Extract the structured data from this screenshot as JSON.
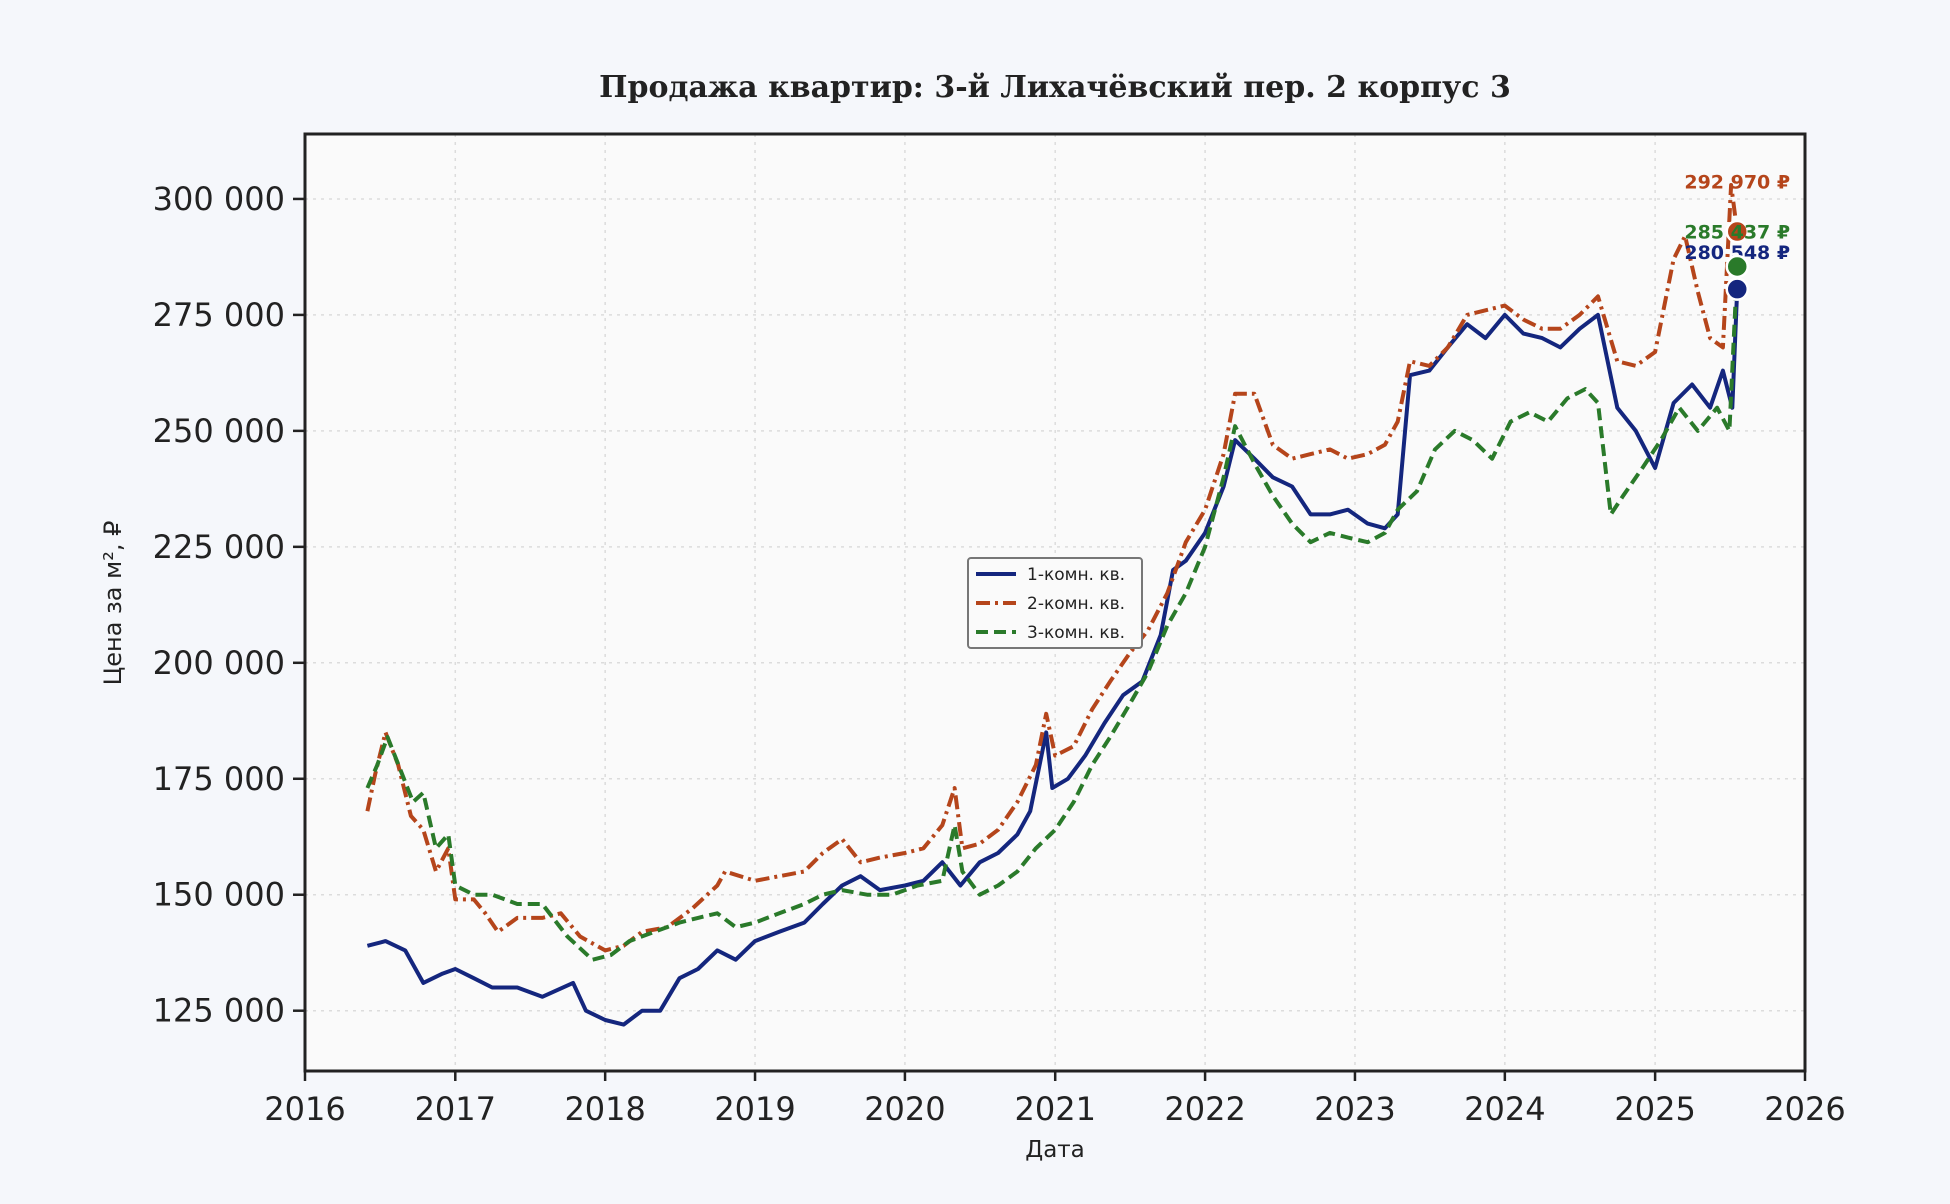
{
  "chart_data": {
    "type": "line",
    "title": "Продажа квартир: 3-й Лихачёвский пер. 2 корпус 3",
    "xlabel": "Дата",
    "ylabel": "Цена за м², ₽",
    "xlim": [
      "2016-01-01",
      "2026-01-01"
    ],
    "ylim": [
      112000,
      314000
    ],
    "x_ticks": [
      "2016",
      "2017",
      "2018",
      "2019",
      "2020",
      "2021",
      "2022",
      "2023",
      "2024",
      "2025",
      "2026"
    ],
    "y_ticks": [
      125000,
      150000,
      175000,
      200000,
      225000,
      250000,
      275000,
      300000
    ],
    "y_tick_labels": [
      "125 000",
      "150 000",
      "175 000",
      "200 000",
      "225 000",
      "250 000",
      "275 000",
      "300 000"
    ],
    "grid": true,
    "legend_position": "center",
    "series": [
      {
        "name": "1-комн. кв.",
        "color": "#14267e",
        "style": "solid",
        "final_value": 280548,
        "final_label": "280 548 ₽",
        "points": [
          [
            "2016-06-01",
            139000
          ],
          [
            "2016-07-15",
            140000
          ],
          [
            "2016-09-01",
            138000
          ],
          [
            "2016-10-15",
            131000
          ],
          [
            "2016-12-01",
            133000
          ],
          [
            "2017-01-01",
            134000
          ],
          [
            "2017-02-15",
            132000
          ],
          [
            "2017-04-01",
            130000
          ],
          [
            "2017-06-01",
            130000
          ],
          [
            "2017-08-01",
            128000
          ],
          [
            "2017-10-15",
            131000
          ],
          [
            "2017-11-15",
            125000
          ],
          [
            "2018-01-01",
            123000
          ],
          [
            "2018-02-15",
            122000
          ],
          [
            "2018-04-01",
            125000
          ],
          [
            "2018-05-15",
            125000
          ],
          [
            "2018-07-01",
            132000
          ],
          [
            "2018-08-15",
            134000
          ],
          [
            "2018-10-01",
            138000
          ],
          [
            "2018-11-15",
            136000
          ],
          [
            "2019-01-01",
            140000
          ],
          [
            "2019-03-01",
            142000
          ],
          [
            "2019-05-01",
            144000
          ],
          [
            "2019-06-15",
            148000
          ],
          [
            "2019-08-01",
            152000
          ],
          [
            "2019-09-15",
            154000
          ],
          [
            "2019-11-01",
            151000
          ],
          [
            "2020-01-01",
            152000
          ],
          [
            "2020-02-15",
            153000
          ],
          [
            "2020-04-01",
            157000
          ],
          [
            "2020-05-15",
            152000
          ],
          [
            "2020-07-01",
            157000
          ],
          [
            "2020-08-15",
            159000
          ],
          [
            "2020-10-01",
            163000
          ],
          [
            "2020-11-01",
            168000
          ],
          [
            "2020-12-10",
            185000
          ],
          [
            "2020-12-25",
            173000
          ],
          [
            "2021-02-01",
            175000
          ],
          [
            "2021-03-15",
            180000
          ],
          [
            "2021-05-01",
            187000
          ],
          [
            "2021-06-15",
            193000
          ],
          [
            "2021-08-01",
            196000
          ],
          [
            "2021-09-15",
            206000
          ],
          [
            "2021-10-15",
            220000
          ],
          [
            "2021-11-15",
            222000
          ],
          [
            "2022-01-01",
            228000
          ],
          [
            "2022-02-15",
            238000
          ],
          [
            "2022-03-15",
            248000
          ],
          [
            "2022-05-01",
            244000
          ],
          [
            "2022-06-15",
            240000
          ],
          [
            "2022-08-01",
            238000
          ],
          [
            "2022-09-15",
            232000
          ],
          [
            "2022-11-01",
            232000
          ],
          [
            "2022-12-15",
            233000
          ],
          [
            "2023-02-01",
            230000
          ],
          [
            "2023-03-15",
            229000
          ],
          [
            "2023-04-15",
            232000
          ],
          [
            "2023-05-15",
            262000
          ],
          [
            "2023-07-01",
            263000
          ],
          [
            "2023-08-15",
            268000
          ],
          [
            "2023-10-01",
            273000
          ],
          [
            "2023-11-15",
            270000
          ],
          [
            "2024-01-01",
            275000
          ],
          [
            "2024-02-15",
            271000
          ],
          [
            "2024-04-01",
            270000
          ],
          [
            "2024-05-15",
            268000
          ],
          [
            "2024-07-01",
            272000
          ],
          [
            "2024-08-15",
            275000
          ],
          [
            "2024-10-01",
            255000
          ],
          [
            "2024-11-15",
            250000
          ],
          [
            "2025-01-01",
            242000
          ],
          [
            "2025-02-15",
            256000
          ],
          [
            "2025-04-01",
            260000
          ],
          [
            "2025-05-15",
            255000
          ],
          [
            "2025-06-15",
            263000
          ],
          [
            "2025-07-08",
            255000
          ],
          [
            "2025-07-20",
            280548
          ]
        ]
      },
      {
        "name": "2-комн. кв.",
        "color": "#b5451b",
        "style": "dashdot",
        "final_value": 292970,
        "final_label": "292 970 ₽",
        "points": [
          [
            "2016-06-01",
            168000
          ],
          [
            "2016-06-20",
            176000
          ],
          [
            "2016-07-15",
            185000
          ],
          [
            "2016-08-15",
            178000
          ],
          [
            "2016-09-15",
            167000
          ],
          [
            "2016-10-15",
            164000
          ],
          [
            "2016-11-15",
            155000
          ],
          [
            "2016-12-15",
            160000
          ],
          [
            "2017-01-01",
            149000
          ],
          [
            "2017-02-15",
            149000
          ],
          [
            "2017-03-15",
            146000
          ],
          [
            "2017-04-15",
            142000
          ],
          [
            "2017-06-01",
            145000
          ],
          [
            "2017-08-01",
            145000
          ],
          [
            "2017-09-15",
            146000
          ],
          [
            "2017-11-01",
            141000
          ],
          [
            "2018-01-01",
            138000
          ],
          [
            "2018-02-15",
            139000
          ],
          [
            "2018-04-01",
            142000
          ],
          [
            "2018-06-01",
            143000
          ],
          [
            "2018-08-01",
            147000
          ],
          [
            "2018-10-01",
            152000
          ],
          [
            "2018-10-20",
            155000
          ],
          [
            "2019-01-01",
            153000
          ],
          [
            "2019-03-01",
            154000
          ],
          [
            "2019-05-01",
            155000
          ],
          [
            "2019-06-15",
            159000
          ],
          [
            "2019-08-01",
            162000
          ],
          [
            "2019-09-15",
            157000
          ],
          [
            "2019-11-01",
            158000
          ],
          [
            "2020-01-01",
            159000
          ],
          [
            "2020-02-15",
            160000
          ],
          [
            "2020-04-01",
            165000
          ],
          [
            "2020-05-01",
            173000
          ],
          [
            "2020-05-20",
            160000
          ],
          [
            "2020-07-01",
            161000
          ],
          [
            "2020-08-15",
            164000
          ],
          [
            "2020-10-01",
            170000
          ],
          [
            "2020-11-15",
            178000
          ],
          [
            "2020-12-10",
            189000
          ],
          [
            "2021-01-01",
            180000
          ],
          [
            "2021-02-15",
            182000
          ],
          [
            "2021-04-01",
            190000
          ],
          [
            "2021-05-15",
            196000
          ],
          [
            "2021-07-01",
            202000
          ],
          [
            "2021-08-15",
            207000
          ],
          [
            "2021-10-01",
            215000
          ],
          [
            "2021-11-15",
            226000
          ],
          [
            "2022-01-01",
            233000
          ],
          [
            "2022-02-15",
            245000
          ],
          [
            "2022-03-15",
            258000
          ],
          [
            "2022-05-01",
            258000
          ],
          [
            "2022-06-15",
            247000
          ],
          [
            "2022-08-01",
            244000
          ],
          [
            "2022-09-15",
            245000
          ],
          [
            "2022-11-01",
            246000
          ],
          [
            "2022-12-15",
            244000
          ],
          [
            "2023-02-01",
            245000
          ],
          [
            "2023-03-15",
            247000
          ],
          [
            "2023-04-15",
            252000
          ],
          [
            "2023-05-15",
            265000
          ],
          [
            "2023-07-01",
            264000
          ],
          [
            "2023-08-15",
            268000
          ],
          [
            "2023-10-01",
            275000
          ],
          [
            "2023-11-15",
            276000
          ],
          [
            "2024-01-01",
            277000
          ],
          [
            "2024-02-15",
            274000
          ],
          [
            "2024-04-01",
            272000
          ],
          [
            "2024-05-15",
            272000
          ],
          [
            "2024-07-01",
            275000
          ],
          [
            "2024-08-15",
            279000
          ],
          [
            "2024-10-01",
            265000
          ],
          [
            "2024-11-15",
            264000
          ],
          [
            "2025-01-01",
            267000
          ],
          [
            "2025-02-15",
            287000
          ],
          [
            "2025-03-15",
            292000
          ],
          [
            "2025-04-15",
            280000
          ],
          [
            "2025-05-15",
            270000
          ],
          [
            "2025-06-15",
            268000
          ],
          [
            "2025-07-05",
            303000
          ],
          [
            "2025-07-20",
            292970
          ]
        ]
      },
      {
        "name": "3-комн. кв.",
        "color": "#2a7a2a",
        "style": "dashed",
        "final_value": 285437,
        "final_label": "285 437 ₽",
        "points": [
          [
            "2016-06-01",
            173000
          ],
          [
            "2016-06-25",
            178000
          ],
          [
            "2016-07-20",
            184000
          ],
          [
            "2016-08-20",
            177000
          ],
          [
            "2016-09-20",
            170000
          ],
          [
            "2016-10-15",
            172000
          ],
          [
            "2016-11-15",
            160000
          ],
          [
            "2016-12-15",
            163000
          ],
          [
            "2017-01-01",
            152000
          ],
          [
            "2017-02-15",
            150000
          ],
          [
            "2017-04-01",
            150000
          ],
          [
            "2017-06-01",
            148000
          ],
          [
            "2017-08-01",
            148000
          ],
          [
            "2017-10-01",
            141000
          ],
          [
            "2017-12-01",
            136000
          ],
          [
            "2018-01-15",
            137000
          ],
          [
            "2018-03-01",
            140000
          ],
          [
            "2018-05-01",
            142000
          ],
          [
            "2018-07-01",
            144000
          ],
          [
            "2018-08-15",
            145000
          ],
          [
            "2018-10-01",
            146000
          ],
          [
            "2018-11-15",
            143000
          ],
          [
            "2019-01-01",
            144000
          ],
          [
            "2019-03-01",
            146000
          ],
          [
            "2019-05-01",
            148000
          ],
          [
            "2019-06-15",
            150000
          ],
          [
            "2019-08-01",
            151000
          ],
          [
            "2019-10-01",
            150000
          ],
          [
            "2019-12-01",
            150000
          ],
          [
            "2020-02-01",
            152000
          ],
          [
            "2020-04-01",
            153000
          ],
          [
            "2020-05-01",
            165000
          ],
          [
            "2020-05-20",
            155000
          ],
          [
            "2020-07-01",
            150000
          ],
          [
            "2020-08-15",
            152000
          ],
          [
            "2020-10-01",
            155000
          ],
          [
            "2020-11-15",
            160000
          ],
          [
            "2021-01-01",
            164000
          ],
          [
            "2021-02-15",
            170000
          ],
          [
            "2021-04-01",
            178000
          ],
          [
            "2021-05-15",
            184000
          ],
          [
            "2021-07-01",
            191000
          ],
          [
            "2021-08-15",
            198000
          ],
          [
            "2021-10-01",
            208000
          ],
          [
            "2021-11-15",
            215000
          ],
          [
            "2022-01-01",
            225000
          ],
          [
            "2022-02-15",
            240000
          ],
          [
            "2022-03-15",
            251000
          ],
          [
            "2022-05-01",
            243000
          ],
          [
            "2022-06-15",
            236000
          ],
          [
            "2022-08-01",
            230000
          ],
          [
            "2022-09-15",
            226000
          ],
          [
            "2022-11-01",
            228000
          ],
          [
            "2022-12-15",
            227000
          ],
          [
            "2023-02-01",
            226000
          ],
          [
            "2023-03-15",
            228000
          ],
          [
            "2023-04-15",
            233000
          ],
          [
            "2023-06-01",
            237000
          ],
          [
            "2023-07-15",
            246000
          ],
          [
            "2023-09-01",
            250000
          ],
          [
            "2023-10-15",
            248000
          ],
          [
            "2023-12-01",
            244000
          ],
          [
            "2024-01-15",
            252000
          ],
          [
            "2024-03-01",
            254000
          ],
          [
            "2024-04-15",
            252000
          ],
          [
            "2024-06-01",
            257000
          ],
          [
            "2024-07-15",
            259000
          ],
          [
            "2024-08-15",
            256000
          ],
          [
            "2024-09-15",
            232000
          ],
          [
            "2024-10-15",
            236000
          ],
          [
            "2024-12-01",
            242000
          ],
          [
            "2025-01-15",
            248000
          ],
          [
            "2025-03-01",
            255000
          ],
          [
            "2025-04-15",
            250000
          ],
          [
            "2025-06-01",
            255000
          ],
          [
            "2025-07-01",
            250000
          ],
          [
            "2025-07-20",
            285437
          ]
        ]
      }
    ]
  }
}
